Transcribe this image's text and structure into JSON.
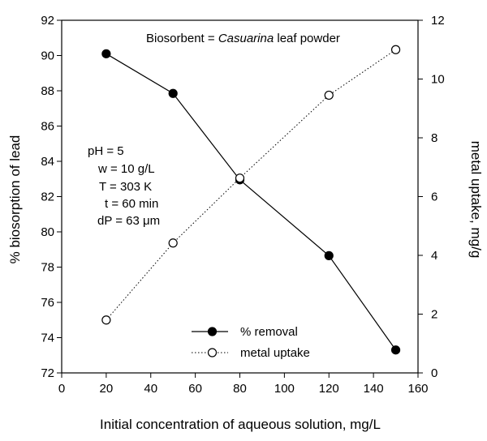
{
  "chart_data": {
    "type": "line",
    "title": "",
    "x": [
      20,
      50,
      80,
      120,
      150
    ],
    "xlabel": "Initial concentration of aqueous solution, mg/L",
    "xlim": [
      0,
      160
    ],
    "xticks": [
      0,
      20,
      40,
      60,
      80,
      100,
      120,
      140,
      160
    ],
    "ylabel": "% biosorption of lead",
    "ylim": [
      72,
      92
    ],
    "yticks": [
      72,
      74,
      76,
      78,
      80,
      82,
      84,
      86,
      88,
      90,
      92
    ],
    "y2label": "metal uptake, mg/g",
    "y2lim": [
      0,
      12
    ],
    "y2ticks": [
      0,
      2,
      4,
      6,
      8,
      10,
      12
    ],
    "grid": false,
    "legend": "bottom-center",
    "series": [
      {
        "name": "% removal",
        "axis": "left",
        "values": [
          90.1,
          87.85,
          82.95,
          78.65,
          73.3
        ],
        "marker": "filled-circle",
        "line": "solid",
        "color": "#000000"
      },
      {
        "name": "metal uptake",
        "axis": "right",
        "values": [
          1.8,
          4.42,
          6.63,
          9.45,
          11.0
        ],
        "marker": "open-circle",
        "line": "dotted",
        "color": "#000000"
      }
    ],
    "annotations": {
      "biosorbent": {
        "prefix": "Biosorbent = ",
        "name": "Casuarina",
        "suffix": " leaf powder"
      },
      "ph": "pH = 5",
      "w": "w = 10 g/L",
      "t_temp": "T = 303 K",
      "t_time": "t = 60 min",
      "dp": "dP = 63 μm"
    }
  }
}
